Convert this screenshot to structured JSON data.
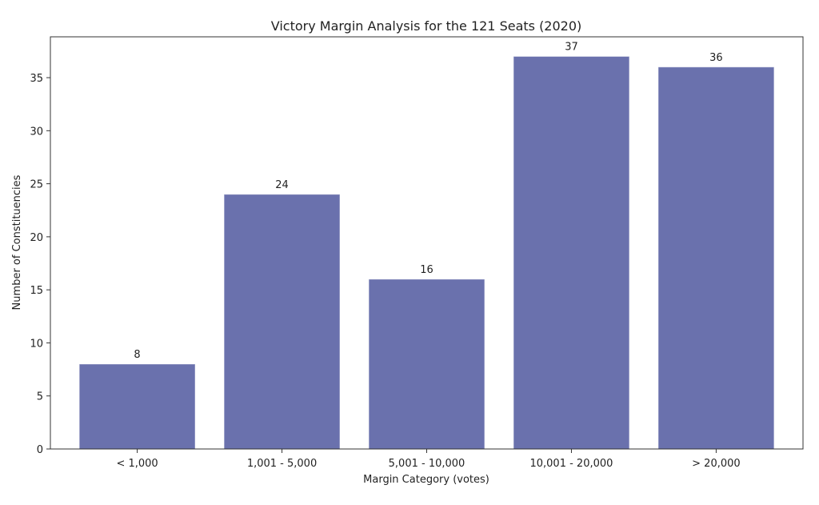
{
  "chart_data": {
    "type": "bar",
    "title": "Victory Margin Analysis for the 121 Seats (2020)",
    "xlabel": "Margin Category (votes)",
    "ylabel": "Number of Constituencies",
    "categories": [
      "< 1,000",
      "1,001 - 5,000",
      "5,001 - 10,000",
      "10,001 - 20,000",
      "> 20,000"
    ],
    "values": [
      8,
      24,
      16,
      37,
      36
    ],
    "data_labels": [
      "8",
      "24",
      "16",
      "37",
      "36"
    ],
    "ylim": [
      0,
      38.85
    ],
    "yticks": [
      0,
      5,
      10,
      15,
      20,
      25,
      30,
      35
    ],
    "grid": false,
    "bar_color": "#6a71ad"
  }
}
